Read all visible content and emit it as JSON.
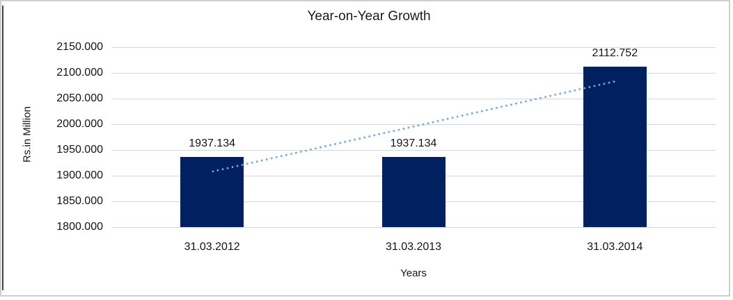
{
  "chart_data": {
    "type": "bar",
    "title": "Year-on-Year Growth",
    "xlabel": "Years",
    "ylabel": "Rs.in Million",
    "categories": [
      "31.03.2012",
      "31.03.2013",
      "31.03.2014"
    ],
    "values": [
      1937.134,
      1937.134,
      2112.752
    ],
    "value_labels": [
      "1937.134",
      "1937.134",
      "2112.752"
    ],
    "yticks": [
      "2150.000",
      "2100.000",
      "2050.000",
      "2000.000",
      "1950.000",
      "1900.000",
      "1850.000",
      "1800.000"
    ],
    "ylim": [
      1800,
      2150
    ],
    "ytick_step": 50,
    "grid": "horizontal",
    "legend": "none",
    "trendline": {
      "type": "linear",
      "style": "dotted",
      "endpoint_values": [
        1907.9,
        2083.5
      ],
      "color": "#79a3d9"
    },
    "colors": {
      "bar": "#002060",
      "gridline": "#d6d6d6",
      "text": "#141414",
      "frame_border": "#cfcfcf",
      "frame_left_line": "#41424c"
    }
  }
}
